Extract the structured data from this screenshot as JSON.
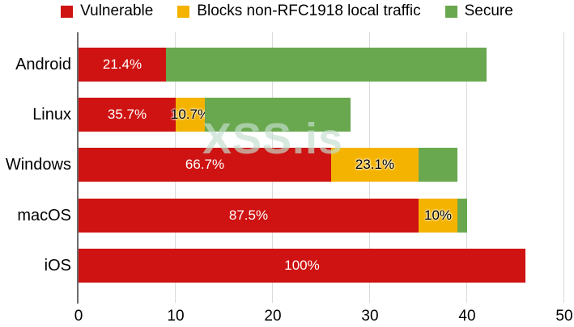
{
  "watermark": {
    "text": "XSS.is"
  },
  "chart_data": {
    "type": "bar",
    "orientation": "horizontal",
    "stacked": true,
    "title": "",
    "xlabel": "",
    "ylabel": "",
    "categories": [
      "Android",
      "Linux",
      "Windows",
      "macOS",
      "iOS"
    ],
    "series": [
      {
        "name": "Vulnerable",
        "color": "#ce1312",
        "label_color": "#ffffff",
        "values": [
          9,
          10,
          26,
          35,
          46
        ],
        "labels": [
          "21.4%",
          "35.7%",
          "66.7%",
          "87.5%",
          "100%"
        ]
      },
      {
        "name": "Blocks non-RFC1918 local traffic",
        "color": "#f5b301",
        "label_color": "#000000",
        "values": [
          0,
          3,
          9,
          4,
          0
        ],
        "labels": [
          "",
          "10.7%",
          "23.1%",
          "10%",
          ""
        ]
      },
      {
        "name": "Secure",
        "color": "#6aa84f",
        "label_color": "#000000",
        "values": [
          33,
          15,
          4,
          1,
          0
        ],
        "labels": [
          "",
          "",
          "",
          "",
          ""
        ]
      }
    ],
    "bar_totals": [
      42,
      28,
      39,
      40,
      46
    ],
    "xlim": [
      0,
      50
    ],
    "x_ticks": [
      "0",
      "10",
      "20",
      "30",
      "40",
      "50"
    ],
    "grid": true,
    "legend_position": "top",
    "axis_color": "#6b6b6b",
    "gridline_color": "#dadada"
  }
}
